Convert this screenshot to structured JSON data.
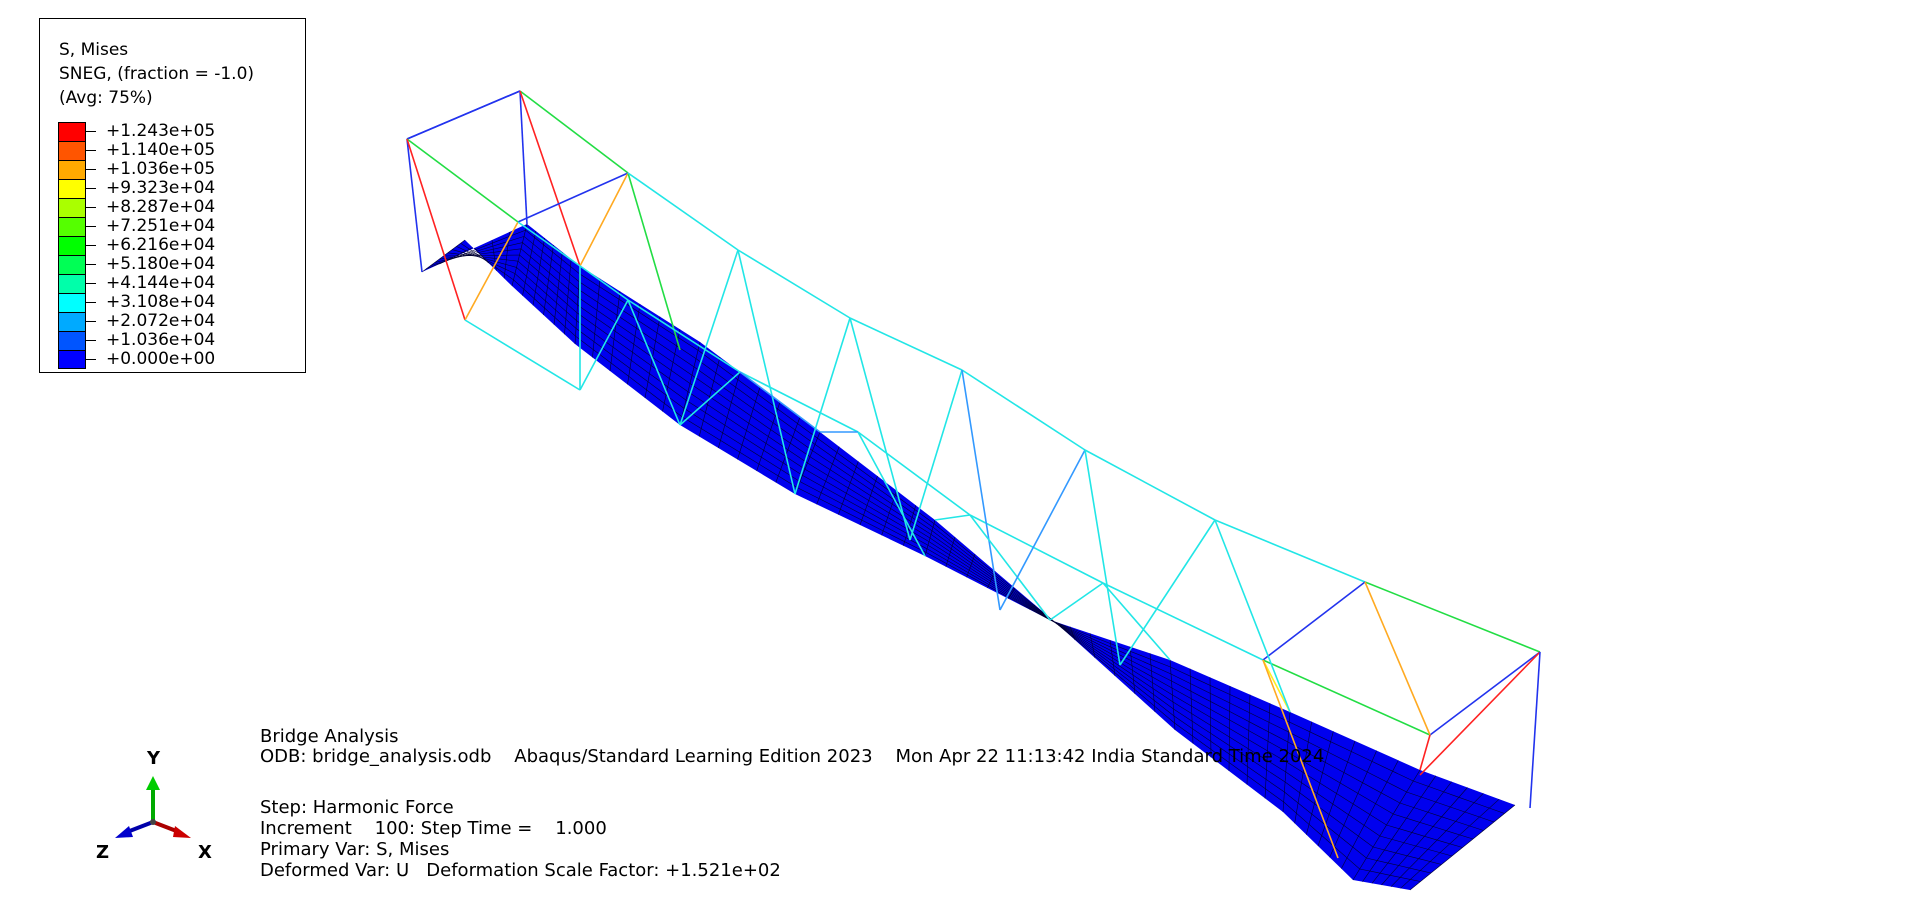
{
  "legend": {
    "title_lines": [
      "S, Mises",
      "SNEG, (fraction = -1.0)",
      "(Avg: 75%)"
    ],
    "values": [
      "+1.243e+05",
      "+1.140e+05",
      "+1.036e+05",
      "+9.323e+04",
      "+8.287e+04",
      "+7.251e+04",
      "+6.216e+04",
      "+5.180e+04",
      "+4.144e+04",
      "+3.108e+04",
      "+2.072e+04",
      "+1.036e+04",
      "+0.000e+00"
    ],
    "colors": [
      "#ff0000",
      "#ff5500",
      "#ffaa00",
      "#ffff00",
      "#aaff00",
      "#55ff00",
      "#00ff00",
      "#00ff55",
      "#00ffaa",
      "#00ffff",
      "#00aaff",
      "#0055ff",
      "#0000ff"
    ]
  },
  "info": {
    "title": "Bridge Analysis",
    "odb_line": "ODB: bridge_analysis.odb    Abaqus/Standard Learning Edition 2023    Mon Apr 22 11:13:42 India Standard Time 2024",
    "step": "Step: Harmonic Force",
    "increment": "Increment    100: Step Time =    1.000",
    "primary_var": "Primary Var: S, Mises",
    "deformed_var": "Deformed Var: U   Deformation Scale Factor: +1.521e+02"
  },
  "triad": {
    "y_label": "Y",
    "z_label": "Z",
    "x_label": "X",
    "y_color": "#00cc00",
    "z_color": "#0000cc",
    "x_color": "#cc0000"
  },
  "model": {
    "deck_color": "#0000ee",
    "mesh_color": "#000033"
  }
}
